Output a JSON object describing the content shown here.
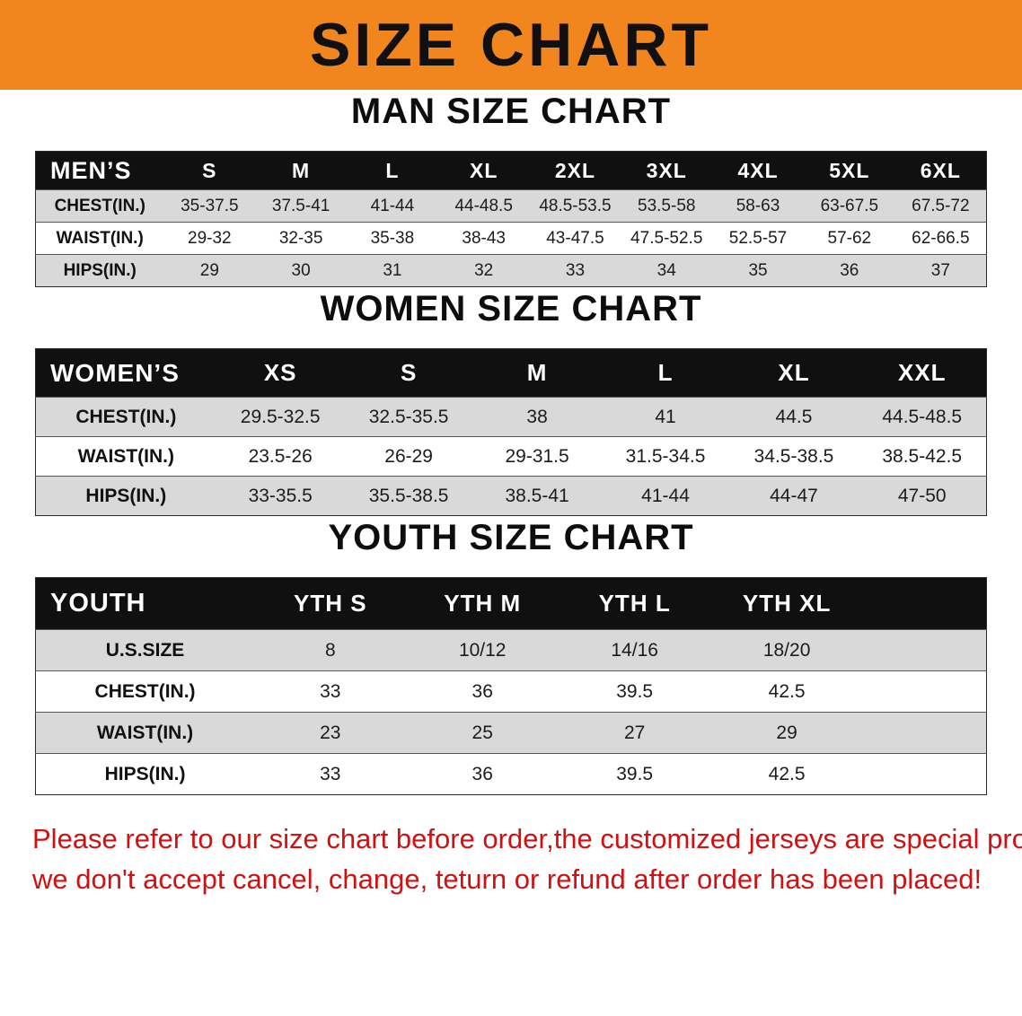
{
  "banner": {
    "title": "SIZE CHART"
  },
  "colors": {
    "banner_bg": "#f1861f",
    "table_header_bg": "#101010",
    "row_shade": "#d9d9d9",
    "footer_text": "#d01111"
  },
  "sections": [
    {
      "id": "men",
      "heading": "MAN SIZE CHART",
      "corner_label": "MEN’S",
      "columns": [
        "S",
        "M",
        "L",
        "XL",
        "2XL",
        "3XL",
        "4XL",
        "5XL",
        "6XL"
      ],
      "rows": [
        {
          "label": "CHEST(IN.)",
          "values": [
            "35-37.5",
            "37.5-41",
            "41-44",
            "44-48.5",
            "48.5-53.5",
            "53.5-58",
            "58-63",
            "63-67.5",
            "67.5-72"
          ]
        },
        {
          "label": "WAIST(IN.)",
          "values": [
            "29-32",
            "32-35",
            "35-38",
            "38-43",
            "43-47.5",
            "47.5-52.5",
            "52.5-57",
            "57-62",
            "62-66.5"
          ]
        },
        {
          "label": "HIPS(IN.)",
          "values": [
            "29",
            "30",
            "31",
            "32",
            "33",
            "34",
            "35",
            "36",
            "37"
          ]
        }
      ]
    },
    {
      "id": "women",
      "heading": "WOMEN SIZE CHART",
      "corner_label": "WOMEN’S",
      "columns": [
        "XS",
        "S",
        "M",
        "L",
        "XL",
        "XXL"
      ],
      "rows": [
        {
          "label": "CHEST(IN.)",
          "values": [
            "29.5-32.5",
            "32.5-35.5",
            "38",
            "41",
            "44.5",
            "44.5-48.5"
          ]
        },
        {
          "label": "WAIST(IN.)",
          "values": [
            "23.5-26",
            "26-29",
            "29-31.5",
            "31.5-34.5",
            "34.5-38.5",
            "38.5-42.5"
          ]
        },
        {
          "label": "HIPS(IN.)",
          "values": [
            "33-35.5",
            "35.5-38.5",
            "38.5-41",
            "41-44",
            "44-47",
            "47-50"
          ]
        }
      ]
    },
    {
      "id": "youth",
      "heading": "YOUTH SIZE CHART",
      "corner_label": "YOUTH",
      "columns": [
        "YTH S",
        "YTH M",
        "YTH L",
        "YTH XL"
      ],
      "rows": [
        {
          "label": "U.S.SIZE",
          "values": [
            "8",
            "10/12",
            "14/16",
            "18/20"
          ]
        },
        {
          "label": "CHEST(IN.)",
          "values": [
            "33",
            "36",
            "39.5",
            "42.5"
          ]
        },
        {
          "label": "WAIST(IN.)",
          "values": [
            "23",
            "25",
            "27",
            "29"
          ]
        },
        {
          "label": "HIPS(IN.)",
          "values": [
            "33",
            "36",
            "39.5",
            "42.5"
          ]
        }
      ]
    }
  ],
  "footer": {
    "line1": "Please refer to our size chart before order,the customized jerseys are special products,",
    "line2": "we don't accept cancel, change, teturn or refund after order has been placed!"
  }
}
